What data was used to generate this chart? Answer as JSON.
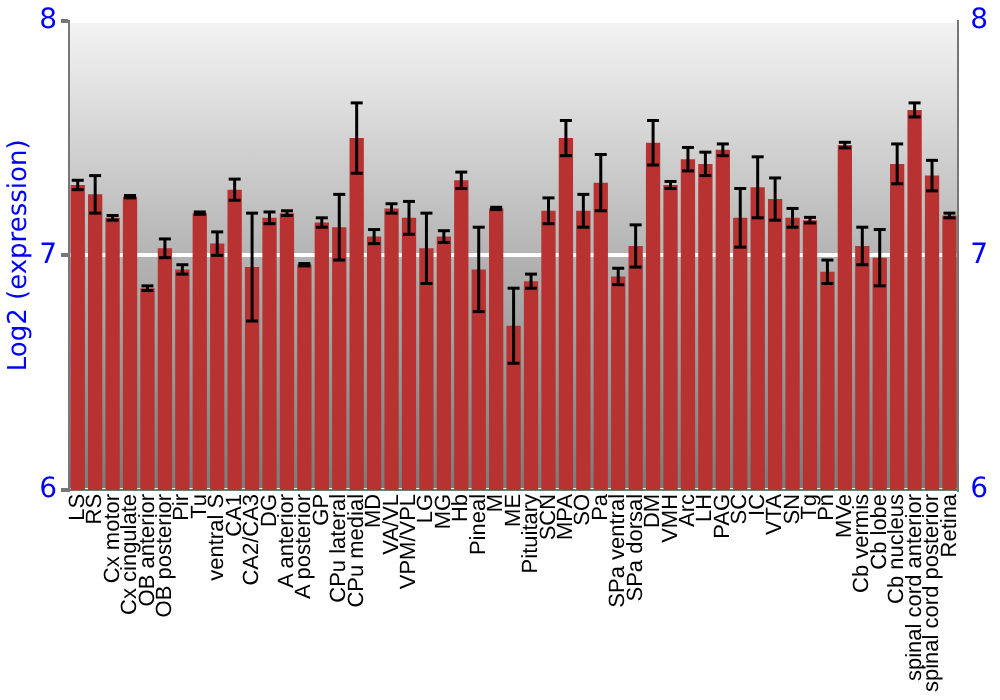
{
  "chart_data": {
    "type": "bar",
    "ylabel": "Log2 (expression)",
    "categories": [
      "LS",
      "RS",
      "Cx motor",
      "Cx cingulate",
      "OB anterior",
      "OB posterior",
      "Pir",
      "Tu",
      "ventral S",
      "CA1",
      "CA2/CA3",
      "DG",
      "A anterior",
      "A posterior",
      "GP",
      "CPu lateral",
      "CPu medial",
      "MD",
      "VA/VL",
      "VPM/VPL",
      "LG",
      "MG",
      "Hb",
      "Pineal",
      "M",
      "ME",
      "Pituitary",
      "SCN",
      "MPA",
      "SO",
      "Pa",
      "SPa ventral",
      "SPa dorsal",
      "DM",
      "VMH",
      "Arc",
      "LH",
      "PAG",
      "SC",
      "IC",
      "VTA",
      "SN",
      "Tg",
      "Pn",
      "MVe",
      "Cb vermis",
      "Cb lobe",
      "Cb nucleus",
      "spinal cord anterior",
      "spinal cord posterior",
      "Retina"
    ],
    "values": [
      7.3,
      7.26,
      7.16,
      7.25,
      6.86,
      7.03,
      6.94,
      7.18,
      7.05,
      7.28,
      6.95,
      7.16,
      7.18,
      6.96,
      7.14,
      7.12,
      7.5,
      7.08,
      7.2,
      7.16,
      7.03,
      7.08,
      7.32,
      6.94,
      7.2,
      6.7,
      6.89,
      7.19,
      7.5,
      7.19,
      7.31,
      6.91,
      7.04,
      7.48,
      7.3,
      7.41,
      7.39,
      7.45,
      7.16,
      7.29,
      7.24,
      7.16,
      7.15,
      6.93,
      7.47,
      7.04,
      6.99,
      7.39,
      7.62,
      7.34,
      7.17
    ],
    "errors": [
      0.02,
      0.08,
      0.01,
      0.005,
      0.01,
      0.04,
      0.02,
      0.005,
      0.05,
      0.045,
      0.23,
      0.025,
      0.01,
      0.005,
      0.02,
      0.14,
      0.15,
      0.03,
      0.02,
      0.07,
      0.15,
      0.025,
      0.035,
      0.18,
      0.005,
      0.16,
      0.03,
      0.055,
      0.075,
      0.07,
      0.12,
      0.035,
      0.09,
      0.095,
      0.015,
      0.05,
      0.05,
      0.025,
      0.125,
      0.13,
      0.09,
      0.04,
      0.012,
      0.05,
      0.012,
      0.08,
      0.12,
      0.085,
      0.03,
      0.065,
      0.01
    ],
    "color": "#b83232",
    "ylim": [
      6,
      8
    ],
    "yticks": [
      6,
      7,
      8
    ],
    "y2lim": [
      6,
      8
    ],
    "y2ticks": [
      6,
      7,
      8
    ],
    "grid": "y",
    "legend": false
  }
}
